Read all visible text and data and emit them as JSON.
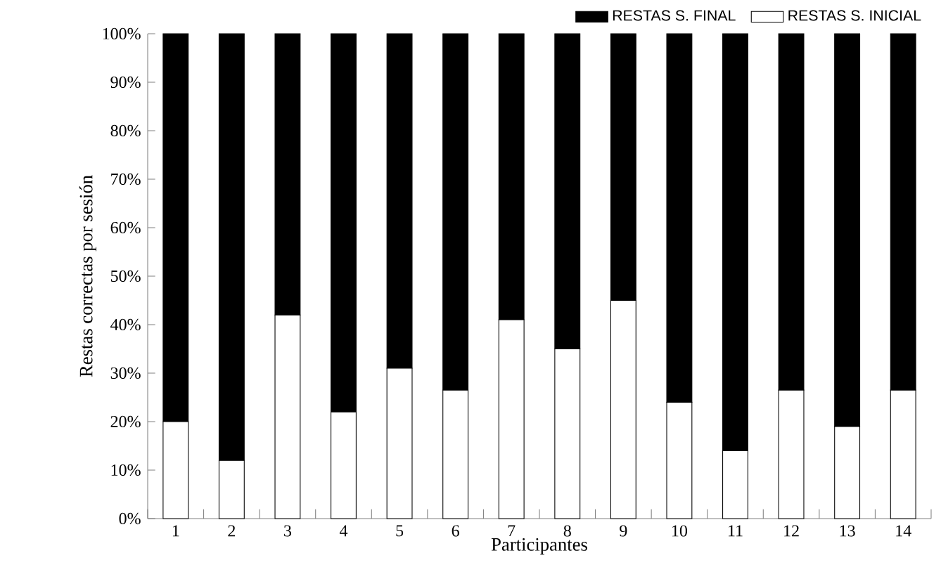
{
  "chart_data": {
    "type": "bar",
    "stacked": true,
    "ylabel": "Restas correctas por sesión",
    "xlabel": "Participantes",
    "categories": [
      "1",
      "2",
      "3",
      "4",
      "5",
      "6",
      "7",
      "8",
      "9",
      "10",
      "11",
      "12",
      "13",
      "14"
    ],
    "series": [
      {
        "name": "RESTAS S. INICIAL",
        "color": "#ffffff",
        "values": [
          20,
          12,
          42,
          22,
          31,
          26.5,
          41,
          35,
          45,
          24,
          14,
          26.5,
          19,
          26.5
        ]
      },
      {
        "name": "RESTAS S. FINAL",
        "color": "#000000",
        "values": [
          80,
          88,
          58,
          78,
          69,
          73.5,
          59,
          65,
          55,
          76,
          86,
          73.5,
          81,
          73.5
        ]
      }
    ],
    "ylim": [
      0,
      100
    ],
    "yticks": [
      {
        "value": 0,
        "label": "0%"
      },
      {
        "value": 10,
        "label": "10%"
      },
      {
        "value": 20,
        "label": "20%"
      },
      {
        "value": 30,
        "label": "30%"
      },
      {
        "value": 40,
        "label": "40%"
      },
      {
        "value": 50,
        "label": "50%"
      },
      {
        "value": 60,
        "label": "60%"
      },
      {
        "value": 70,
        "label": "70%"
      },
      {
        "value": 80,
        "label": "80%"
      },
      {
        "value": 90,
        "label": "90%"
      },
      {
        "value": 100,
        "label": "100%"
      }
    ],
    "legend": "top right"
  }
}
